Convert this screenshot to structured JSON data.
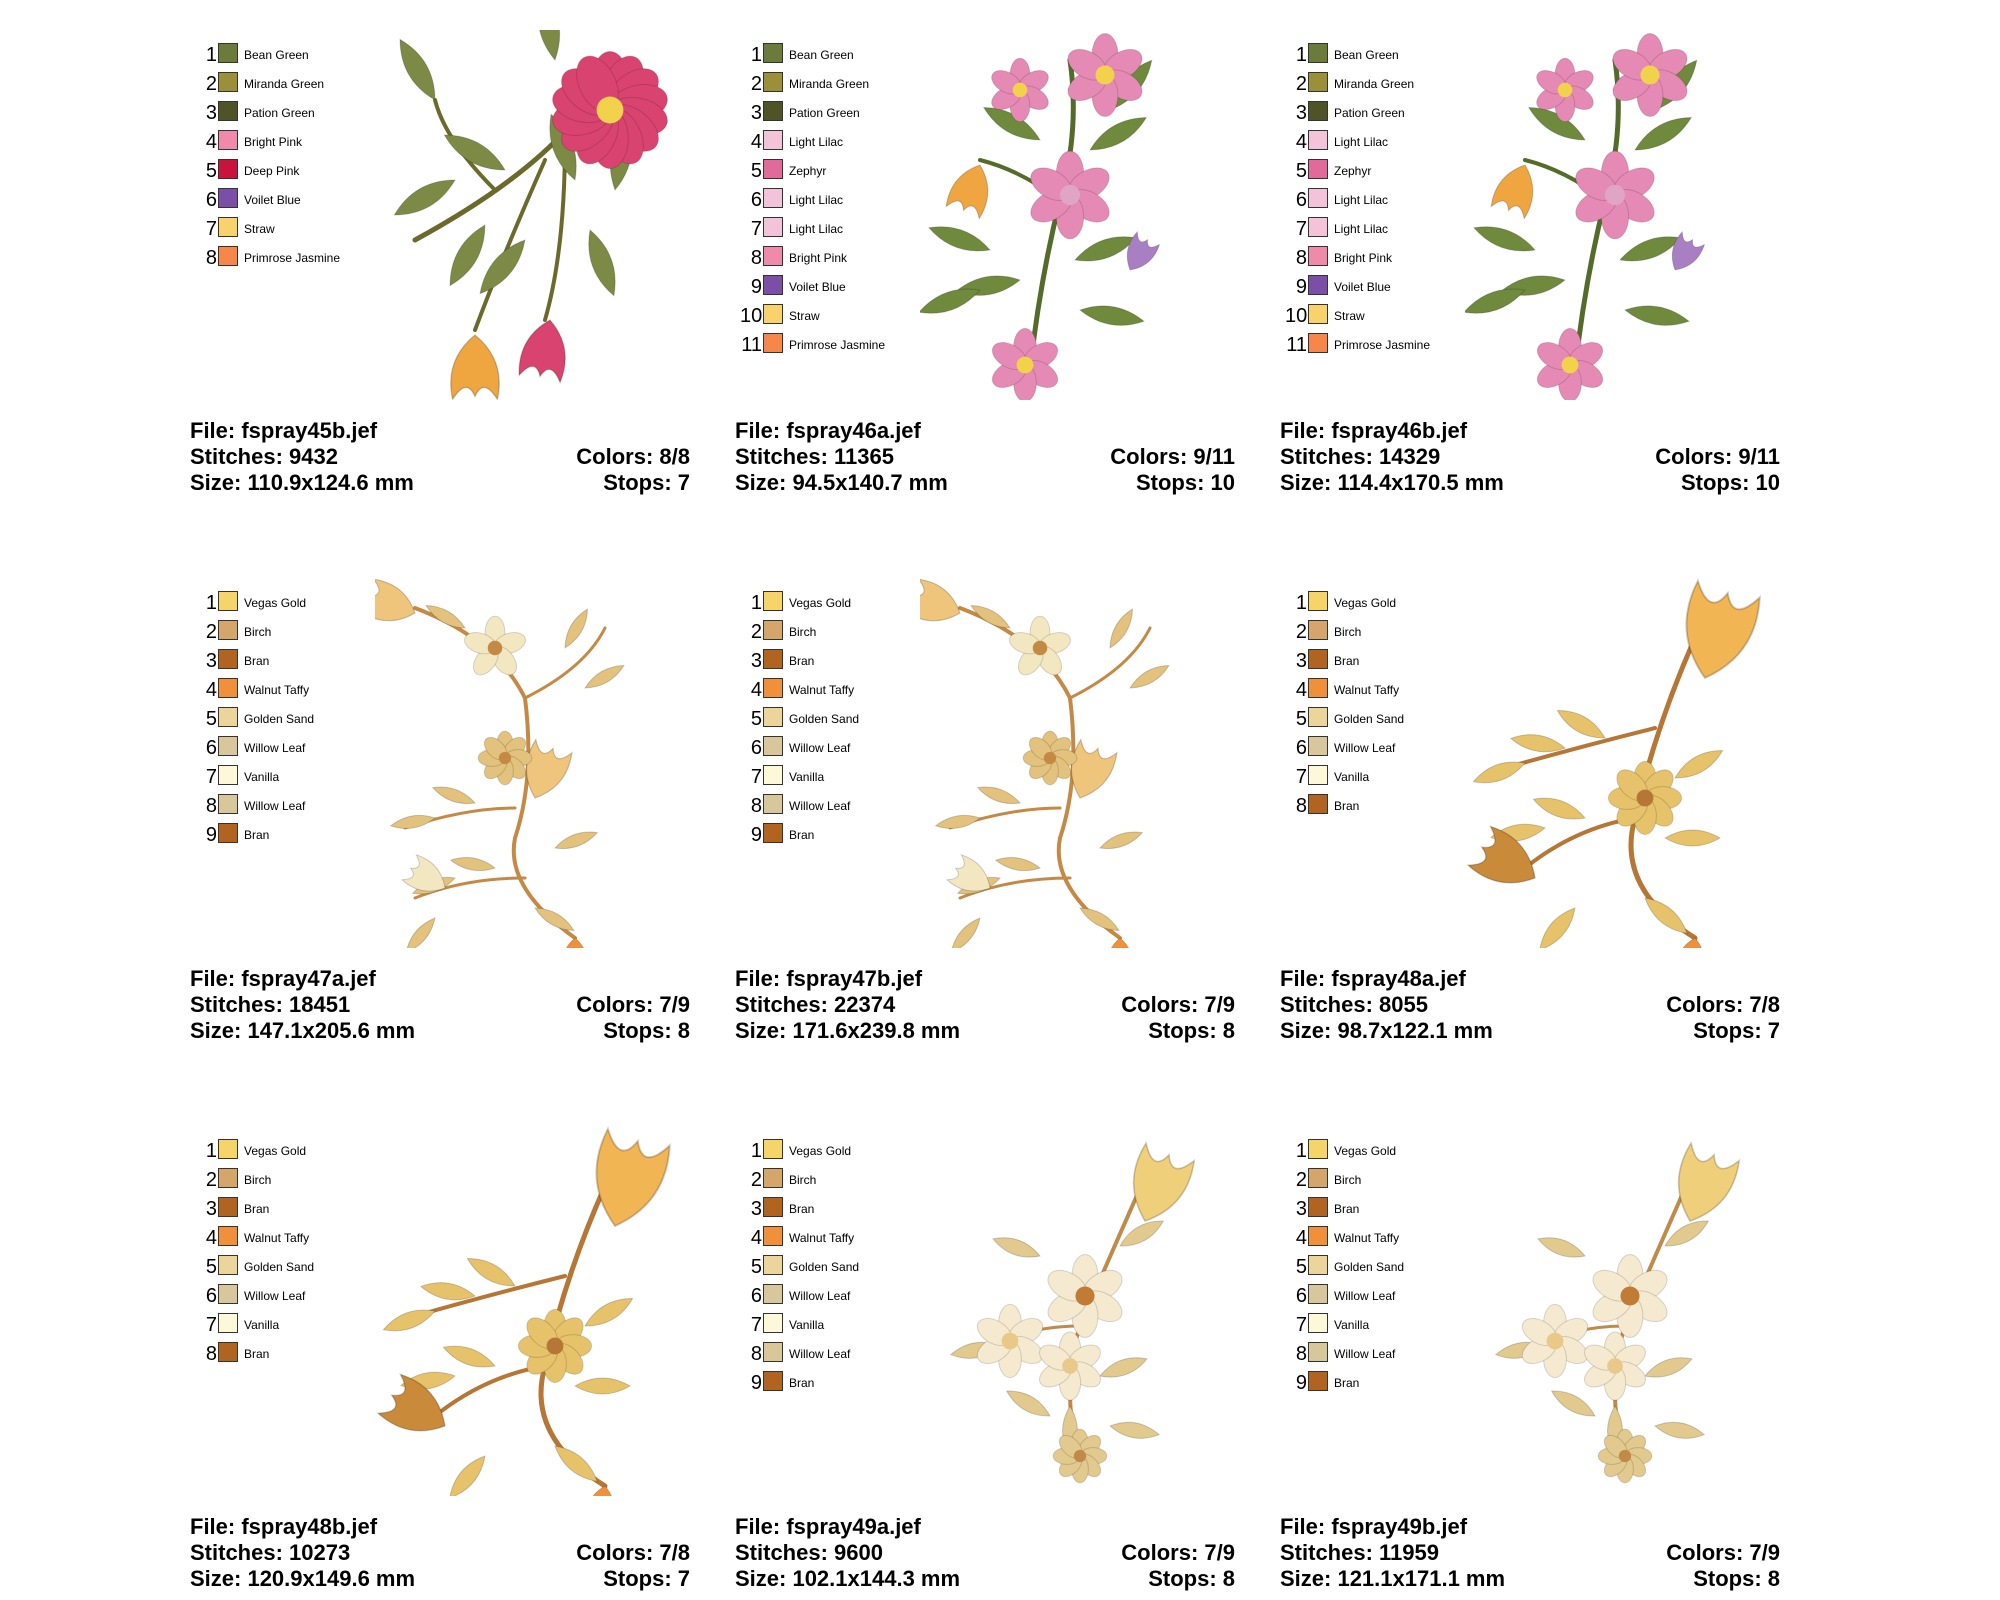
{
  "sheet": {
    "cards": [
      {
        "file": "File: fspray45b.jef",
        "stitches": "Stitches: 9432",
        "size": "Size: 110.9x124.6 mm",
        "colors": "Colors: 8/8",
        "stops": "Stops: 7",
        "motif": "curved-spray",
        "palette": [
          {
            "n": "1",
            "name": "Bean Green",
            "hex": "#6b7c3a"
          },
          {
            "n": "2",
            "name": "Miranda Green",
            "hex": "#9b8f3a"
          },
          {
            "n": "3",
            "name": "Pation Green",
            "hex": "#4f5427"
          },
          {
            "n": "4",
            "name": "Bright Pink",
            "hex": "#f08aab"
          },
          {
            "n": "5",
            "name": "Deep Pink",
            "hex": "#c8143c"
          },
          {
            "n": "6",
            "name": "Voilet Blue",
            "hex": "#7a4fa5"
          },
          {
            "n": "7",
            "name": "Straw",
            "hex": "#f8d36b"
          },
          {
            "n": "8",
            "name": "Primrose Jasmine",
            "hex": "#f7864a"
          }
        ],
        "art": {
          "flower": "#d9436f",
          "flower2": "#f0a640",
          "leaf": "#7d8a46",
          "stem": "#6b6a2c"
        }
      },
      {
        "file": "File: fspray46a.jef",
        "stitches": "Stitches: 11365",
        "size": "Size: 94.5x140.7 mm",
        "colors": "Colors: 9/11",
        "stops": "Stops: 10",
        "motif": "vertical-spray",
        "palette": [
          {
            "n": "1",
            "name": "Bean Green",
            "hex": "#6b7c3a"
          },
          {
            "n": "2",
            "name": "Miranda Green",
            "hex": "#9b8f3a"
          },
          {
            "n": "3",
            "name": "Pation Green",
            "hex": "#4f5427"
          },
          {
            "n": "4",
            "name": "Light Lilac",
            "hex": "#f2c3d9"
          },
          {
            "n": "5",
            "name": "Zephyr",
            "hex": "#e06b9a"
          },
          {
            "n": "6",
            "name": "Light Lilac",
            "hex": "#f2c3d9"
          },
          {
            "n": "7",
            "name": "Light Lilac",
            "hex": "#f2c3d9"
          },
          {
            "n": "8",
            "name": "Bright Pink",
            "hex": "#f08aab"
          },
          {
            "n": "9",
            "name": "Voilet Blue",
            "hex": "#7a4fa5"
          },
          {
            "n": "10",
            "name": "Straw",
            "hex": "#f8d36b"
          },
          {
            "n": "11",
            "name": "Primrose Jasmine",
            "hex": "#f7864a"
          }
        ],
        "art": {
          "flower": "#e58ab5",
          "flower2": "#f0a640",
          "leaf": "#6f8a3c",
          "stem": "#556b2a"
        }
      },
      {
        "file": "File: fspray46b.jef",
        "stitches": "Stitches: 14329",
        "size": "Size: 114.4x170.5 mm",
        "colors": "Colors: 9/11",
        "stops": "Stops: 10",
        "motif": "vertical-spray",
        "palette": [
          {
            "n": "1",
            "name": "Bean Green",
            "hex": "#6b7c3a"
          },
          {
            "n": "2",
            "name": "Miranda Green",
            "hex": "#9b8f3a"
          },
          {
            "n": "3",
            "name": "Pation Green",
            "hex": "#4f5427"
          },
          {
            "n": "4",
            "name": "Light Lilac",
            "hex": "#f2c3d9"
          },
          {
            "n": "5",
            "name": "Zephyr",
            "hex": "#e06b9a"
          },
          {
            "n": "6",
            "name": "Light Lilac",
            "hex": "#f2c3d9"
          },
          {
            "n": "7",
            "name": "Light Lilac",
            "hex": "#f2c3d9"
          },
          {
            "n": "8",
            "name": "Bright Pink",
            "hex": "#f08aab"
          },
          {
            "n": "9",
            "name": "Voilet Blue",
            "hex": "#7a4fa5"
          },
          {
            "n": "10",
            "name": "Straw",
            "hex": "#f8d36b"
          },
          {
            "n": "11",
            "name": "Primrose Jasmine",
            "hex": "#f7864a"
          }
        ],
        "art": {
          "flower": "#e58ab5",
          "flower2": "#f0a640",
          "leaf": "#6f8a3c",
          "stem": "#556b2a"
        }
      },
      {
        "file": "File: fspray47a.jef",
        "stitches": "Stitches: 18451",
        "size": "Size: 147.1x205.6 mm",
        "colors": "Colors: 7/9",
        "stops": "Stops: 8",
        "motif": "golden-sprig",
        "palette": [
          {
            "n": "1",
            "name": "Vegas Gold",
            "hex": "#f5d56a"
          },
          {
            "n": "2",
            "name": "Birch",
            "hex": "#d4a66a"
          },
          {
            "n": "3",
            "name": "Bran",
            "hex": "#b0641f"
          },
          {
            "n": "4",
            "name": "Walnut Taffy",
            "hex": "#f0903a"
          },
          {
            "n": "5",
            "name": "Golden Sand",
            "hex": "#ecd59a"
          },
          {
            "n": "6",
            "name": "Willow Leaf",
            "hex": "#d8c79a"
          },
          {
            "n": "7",
            "name": "Vanilla",
            "hex": "#fdf8d8"
          },
          {
            "n": "8",
            "name": "Willow Leaf",
            "hex": "#d8c79a"
          },
          {
            "n": "9",
            "name": "Bran",
            "hex": "#b0641f"
          }
        ],
        "art": {
          "flower": "#eec57a",
          "flower2": "#f3e7c2",
          "leaf": "#e2c27c",
          "stem": "#c48a45"
        }
      },
      {
        "file": "File: fspray47b.jef",
        "stitches": "Stitches: 22374",
        "size": "Size: 171.6x239.8 mm",
        "colors": "Colors: 7/9",
        "stops": "Stops: 8",
        "motif": "golden-sprig",
        "palette": [
          {
            "n": "1",
            "name": "Vegas Gold",
            "hex": "#f5d56a"
          },
          {
            "n": "2",
            "name": "Birch",
            "hex": "#d4a66a"
          },
          {
            "n": "3",
            "name": "Bran",
            "hex": "#b0641f"
          },
          {
            "n": "4",
            "name": "Walnut Taffy",
            "hex": "#f0903a"
          },
          {
            "n": "5",
            "name": "Golden Sand",
            "hex": "#ecd59a"
          },
          {
            "n": "6",
            "name": "Willow Leaf",
            "hex": "#d8c79a"
          },
          {
            "n": "7",
            "name": "Vanilla",
            "hex": "#fdf8d8"
          },
          {
            "n": "8",
            "name": "Willow Leaf",
            "hex": "#d8c79a"
          },
          {
            "n": "9",
            "name": "Bran",
            "hex": "#b0641f"
          }
        ],
        "art": {
          "flower": "#eec57a",
          "flower2": "#f3e7c2",
          "leaf": "#e2c27c",
          "stem": "#c48a45"
        }
      },
      {
        "file": "File: fspray48a.jef",
        "stitches": "Stitches: 8055",
        "size": "Size: 98.7x122.1 mm",
        "colors": "Colors: 7/8",
        "stops": "Stops: 7",
        "motif": "tulip-branch",
        "palette": [
          {
            "n": "1",
            "name": "Vegas Gold",
            "hex": "#f5d56a"
          },
          {
            "n": "2",
            "name": "Birch",
            "hex": "#d4a66a"
          },
          {
            "n": "3",
            "name": "Bran",
            "hex": "#b0641f"
          },
          {
            "n": "4",
            "name": "Walnut Taffy",
            "hex": "#f0903a"
          },
          {
            "n": "5",
            "name": "Golden Sand",
            "hex": "#ecd59a"
          },
          {
            "n": "6",
            "name": "Willow Leaf",
            "hex": "#d8c79a"
          },
          {
            "n": "7",
            "name": "Vanilla",
            "hex": "#fdf8d8"
          },
          {
            "n": "8",
            "name": "Bran",
            "hex": "#b0641f"
          }
        ],
        "art": {
          "flower": "#f2b553",
          "flower2": "#c98a3a",
          "leaf": "#e6c26a",
          "stem": "#b57636"
        }
      },
      {
        "file": "File: fspray48b.jef",
        "stitches": "Stitches: 10273",
        "size": "Size: 120.9x149.6 mm",
        "colors": "Colors: 7/8",
        "stops": "Stops: 7",
        "motif": "tulip-branch",
        "palette": [
          {
            "n": "1",
            "name": "Vegas Gold",
            "hex": "#f5d56a"
          },
          {
            "n": "2",
            "name": "Birch",
            "hex": "#d4a66a"
          },
          {
            "n": "3",
            "name": "Bran",
            "hex": "#b0641f"
          },
          {
            "n": "4",
            "name": "Walnut Taffy",
            "hex": "#f0903a"
          },
          {
            "n": "5",
            "name": "Golden Sand",
            "hex": "#ecd59a"
          },
          {
            "n": "6",
            "name": "Willow Leaf",
            "hex": "#d8c79a"
          },
          {
            "n": "7",
            "name": "Vanilla",
            "hex": "#fdf8d8"
          },
          {
            "n": "8",
            "name": "Bran",
            "hex": "#b0641f"
          }
        ],
        "art": {
          "flower": "#f2b553",
          "flower2": "#c98a3a",
          "leaf": "#e6c26a",
          "stem": "#b57636"
        }
      },
      {
        "file": "File: fspray49a.jef",
        "stitches": "Stitches: 9600",
        "size": "Size: 102.1x144.3 mm",
        "colors": "Colors: 7/9",
        "stops": "Stops: 8",
        "motif": "blossom-corner",
        "palette": [
          {
            "n": "1",
            "name": "Vegas Gold",
            "hex": "#f5d56a"
          },
          {
            "n": "2",
            "name": "Birch",
            "hex": "#d4a66a"
          },
          {
            "n": "3",
            "name": "Bran",
            "hex": "#b0641f"
          },
          {
            "n": "4",
            "name": "Walnut Taffy",
            "hex": "#f0903a"
          },
          {
            "n": "5",
            "name": "Golden Sand",
            "hex": "#ecd59a"
          },
          {
            "n": "6",
            "name": "Willow Leaf",
            "hex": "#d8c79a"
          },
          {
            "n": "7",
            "name": "Vanilla",
            "hex": "#fdf8d8"
          },
          {
            "n": "8",
            "name": "Willow Leaf",
            "hex": "#d8c79a"
          },
          {
            "n": "9",
            "name": "Bran",
            "hex": "#b0641f"
          }
        ],
        "art": {
          "flower": "#f0cf7a",
          "flower2": "#f5ead0",
          "leaf": "#e2c98e",
          "stem": "#c08a48"
        }
      },
      {
        "file": "File: fspray49b.jef",
        "stitches": "Stitches: 11959",
        "size": "Size: 121.1x171.1 mm",
        "colors": "Colors: 7/9",
        "stops": "Stops: 8",
        "motif": "blossom-corner",
        "palette": [
          {
            "n": "1",
            "name": "Vegas Gold",
            "hex": "#f5d56a"
          },
          {
            "n": "2",
            "name": "Birch",
            "hex": "#d4a66a"
          },
          {
            "n": "3",
            "name": "Bran",
            "hex": "#b0641f"
          },
          {
            "n": "4",
            "name": "Walnut Taffy",
            "hex": "#f0903a"
          },
          {
            "n": "5",
            "name": "Golden Sand",
            "hex": "#ecd59a"
          },
          {
            "n": "6",
            "name": "Willow Leaf",
            "hex": "#d8c79a"
          },
          {
            "n": "7",
            "name": "Vanilla",
            "hex": "#fdf8d8"
          },
          {
            "n": "8",
            "name": "Willow Leaf",
            "hex": "#d8c79a"
          },
          {
            "n": "9",
            "name": "Bran",
            "hex": "#b0641f"
          }
        ],
        "art": {
          "flower": "#f0cf7a",
          "flower2": "#f5ead0",
          "leaf": "#e2c98e",
          "stem": "#c08a48"
        }
      }
    ]
  }
}
